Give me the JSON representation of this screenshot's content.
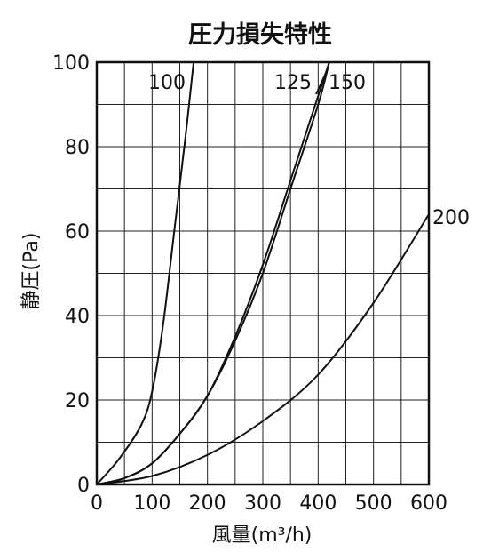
{
  "chart_data": {
    "type": "line",
    "title": "圧力損失特性",
    "xlabel": "風量(m³/h)",
    "ylabel": "静圧(Pa)",
    "xlim": [
      0,
      600
    ],
    "ylim": [
      0,
      100
    ],
    "x_ticks": [
      "0",
      "100",
      "200",
      "300",
      "400",
      "500",
      "600"
    ],
    "y_ticks": [
      "0",
      "20",
      "40",
      "60",
      "80",
      "100"
    ],
    "grid": true,
    "series": [
      {
        "name": "100",
        "x": [
          0,
          40,
          80,
          100,
          120,
          140,
          160,
          175
        ],
        "y": [
          0,
          6,
          14,
          22,
          38,
          60,
          82,
          100
        ]
      },
      {
        "name": "125",
        "x": [
          0,
          50,
          100,
          150,
          200,
          250,
          300,
          350,
          400,
          420
        ],
        "y": [
          0,
          1.5,
          5,
          12,
          21,
          35,
          52,
          72,
          92,
          100
        ]
      },
      {
        "name": "150",
        "x": [
          0,
          50,
          100,
          150,
          200,
          250,
          300,
          350,
          400,
          420
        ],
        "y": [
          0,
          1.5,
          5,
          12,
          21,
          34,
          50,
          70,
          90,
          100
        ]
      },
      {
        "name": "200",
        "x": [
          0,
          100,
          200,
          300,
          400,
          500,
          600
        ],
        "y": [
          0,
          2,
          7,
          15,
          26,
          43,
          64
        ]
      }
    ]
  }
}
